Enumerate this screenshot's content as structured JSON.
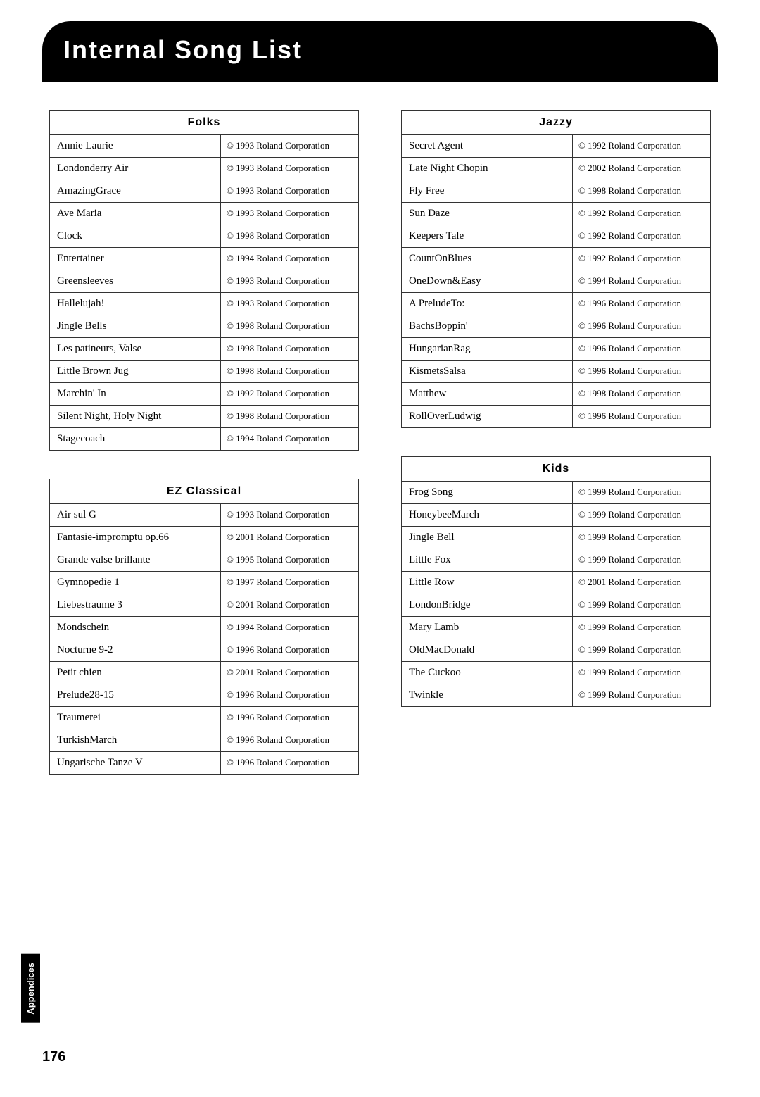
{
  "page_title": "Internal Song List",
  "appendices_label": "Appendices",
  "page_number": "176",
  "tables": {
    "folks": {
      "header": "Folks",
      "rows": [
        {
          "name": "Annie Laurie",
          "copy": "© 1993 Roland Corporation"
        },
        {
          "name": "Londonderry Air",
          "copy": "© 1993 Roland Corporation"
        },
        {
          "name": "AmazingGrace",
          "copy": "© 1993 Roland Corporation"
        },
        {
          "name": "Ave Maria",
          "copy": "© 1993 Roland Corporation"
        },
        {
          "name": "Clock",
          "copy": "© 1998 Roland Corporation"
        },
        {
          "name": "Entertainer",
          "copy": "© 1994 Roland Corporation"
        },
        {
          "name": "Greensleeves",
          "copy": "© 1993 Roland Corporation"
        },
        {
          "name": "Hallelujah!",
          "copy": "© 1993 Roland Corporation"
        },
        {
          "name": "Jingle Bells",
          "copy": "© 1998 Roland Corporation"
        },
        {
          "name": "Les patineurs, Valse",
          "copy": "© 1998 Roland Corporation"
        },
        {
          "name": "Little Brown Jug",
          "copy": "© 1998 Roland Corporation"
        },
        {
          "name": "Marchin' In",
          "copy": "© 1992 Roland Corporation"
        },
        {
          "name": "Silent Night, Holy Night",
          "copy": "© 1998 Roland Corporation"
        },
        {
          "name": "Stagecoach",
          "copy": "© 1994 Roland Corporation"
        }
      ]
    },
    "ez_classical": {
      "header": "EZ Classical",
      "rows": [
        {
          "name": "Air sul G",
          "copy": "© 1993 Roland Corporation"
        },
        {
          "name": "Fantasie-impromptu op.66",
          "copy": "© 2001 Roland Corporation"
        },
        {
          "name": "Grande valse brillante",
          "copy": "© 1995 Roland Corporation"
        },
        {
          "name": "Gymnopedie 1",
          "copy": "© 1997 Roland Corporation"
        },
        {
          "name": "Liebestraume 3",
          "copy": "© 2001 Roland Corporation"
        },
        {
          "name": "Mondschein",
          "copy": "© 1994 Roland Corporation"
        },
        {
          "name": "Nocturne 9-2",
          "copy": "© 1996 Roland Corporation"
        },
        {
          "name": "Petit chien",
          "copy": "© 2001 Roland Corporation"
        },
        {
          "name": "Prelude28-15",
          "copy": "© 1996 Roland Corporation"
        },
        {
          "name": "Traumerei",
          "copy": "© 1996 Roland Corporation"
        },
        {
          "name": "TurkishMarch",
          "copy": "© 1996 Roland Corporation"
        },
        {
          "name": "Ungarische Tanze V",
          "copy": "© 1996 Roland Corporation"
        }
      ]
    },
    "jazzy": {
      "header": "Jazzy",
      "rows": [
        {
          "name": "Secret Agent",
          "copy": "© 1992 Roland Corporation"
        },
        {
          "name": "Late Night Chopin",
          "copy": "© 2002 Roland Corporation"
        },
        {
          "name": "Fly Free",
          "copy": "© 1998 Roland Corporation"
        },
        {
          "name": "Sun Daze",
          "copy": "© 1992 Roland Corporation"
        },
        {
          "name": "Keepers Tale",
          "copy": "© 1992 Roland Corporation"
        },
        {
          "name": "CountOnBlues",
          "copy": "© 1992 Roland Corporation"
        },
        {
          "name": "OneDown&Easy",
          "copy": "© 1994 Roland Corporation"
        },
        {
          "name": "A PreludeTo:",
          "copy": "© 1996 Roland Corporation"
        },
        {
          "name": "BachsBoppin'",
          "copy": "© 1996 Roland Corporation"
        },
        {
          "name": "HungarianRag",
          "copy": "© 1996 Roland Corporation"
        },
        {
          "name": "KismetsSalsa",
          "copy": "© 1996 Roland Corporation"
        },
        {
          "name": "Matthew",
          "copy": "© 1998 Roland Corporation"
        },
        {
          "name": "RollOverLudwig",
          "copy": "© 1996 Roland Corporation"
        }
      ]
    },
    "kids": {
      "header": "Kids",
      "rows": [
        {
          "name": "Frog Song",
          "copy": "© 1999 Roland Corporation"
        },
        {
          "name": "HoneybeeMarch",
          "copy": "© 1999 Roland Corporation"
        },
        {
          "name": "Jingle Bell",
          "copy": "© 1999 Roland Corporation"
        },
        {
          "name": "Little Fox",
          "copy": "© 1999 Roland Corporation"
        },
        {
          "name": "Little Row",
          "copy": "© 2001 Roland Corporation"
        },
        {
          "name": "LondonBridge",
          "copy": "© 1999 Roland Corporation"
        },
        {
          "name": "Mary Lamb",
          "copy": "© 1999 Roland Corporation"
        },
        {
          "name": "OldMacDonald",
          "copy": "© 1999 Roland Corporation"
        },
        {
          "name": "The Cuckoo",
          "copy": "© 1999 Roland Corporation"
        },
        {
          "name": "Twinkle",
          "copy": "© 1999 Roland Corporation"
        }
      ]
    }
  }
}
